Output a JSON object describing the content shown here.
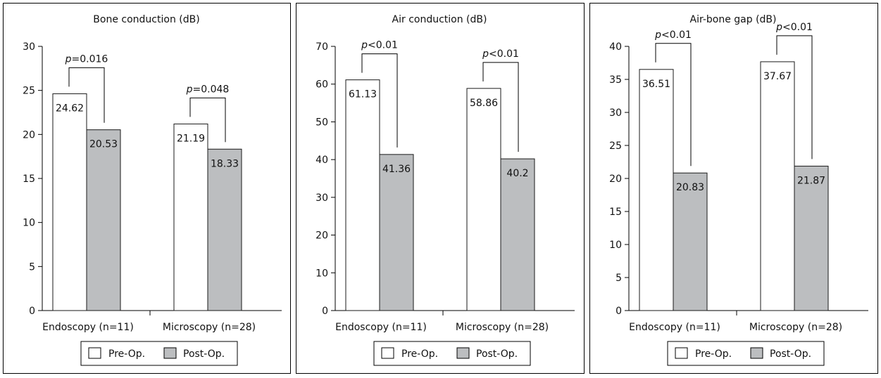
{
  "chart_data": [
    {
      "type": "bar",
      "title": "Bone conduction (dB)",
      "categories": [
        "Endoscopy (n=11)",
        "Microscopy (n=28)"
      ],
      "series": [
        {
          "name": "Pre-Op.",
          "values": [
            24.62,
            21.19
          ]
        },
        {
          "name": "Post-Op.",
          "values": [
            20.53,
            18.33
          ]
        }
      ],
      "value_labels": {
        "Pre-Op.": [
          "24.62",
          "21.19"
        ],
        "Post-Op.": [
          "20.53",
          "18.33"
        ]
      },
      "pvalues": [
        {
          "prefix": "p",
          "text": "=0.016"
        },
        {
          "prefix": "p",
          "text": "=0.048"
        }
      ],
      "ylim": [
        0,
        30
      ],
      "yticks": [
        "0",
        "5",
        "10",
        "15",
        "20",
        "25",
        "30"
      ],
      "xlabel": "",
      "ylabel": ""
    },
    {
      "type": "bar",
      "title": "Air conduction (dB)",
      "categories": [
        "Endoscopy (n=11)",
        "Microscopy (n=28)"
      ],
      "series": [
        {
          "name": "Pre-Op.",
          "values": [
            61.13,
            58.86
          ]
        },
        {
          "name": "Post-Op.",
          "values": [
            41.36,
            40.2
          ]
        }
      ],
      "value_labels": {
        "Pre-Op.": [
          "61.13",
          "58.86"
        ],
        "Post-Op.": [
          "41.36",
          "40.2"
        ]
      },
      "pvalues": [
        {
          "prefix": "p",
          "text": "<0.01"
        },
        {
          "prefix": "p",
          "text": "<0.01"
        }
      ],
      "ylim": [
        0,
        70
      ],
      "yticks": [
        "0",
        "10",
        "20",
        "30",
        "40",
        "50",
        "60",
        "70"
      ],
      "xlabel": "",
      "ylabel": ""
    },
    {
      "type": "bar",
      "title": "Air-bone gap (dB)",
      "categories": [
        "Endoscopy (n=11)",
        "Microscopy (n=28)"
      ],
      "series": [
        {
          "name": "Pre-Op.",
          "values": [
            36.51,
            37.67
          ]
        },
        {
          "name": "Post-Op.",
          "values": [
            20.83,
            21.87
          ]
        }
      ],
      "value_labels": {
        "Pre-Op.": [
          "36.51",
          "37.67"
        ],
        "Post-Op.": [
          "20.83",
          "21.87"
        ]
      },
      "pvalues": [
        {
          "prefix": "p",
          "text": "<0.01"
        },
        {
          "prefix": "p",
          "text": "<0.01"
        }
      ],
      "ylim": [
        0,
        40
      ],
      "yticks": [
        "0",
        "5",
        "10",
        "15",
        "20",
        "25",
        "30",
        "35",
        "40"
      ],
      "xlabel": "",
      "ylabel": ""
    }
  ],
  "legend": {
    "items": [
      "Pre-Op.",
      "Post-Op."
    ],
    "placement": "bottom-center"
  },
  "colors": {
    "pre": "#ffffff",
    "post": "#bcbec0",
    "stroke": "#1a1a1a"
  }
}
